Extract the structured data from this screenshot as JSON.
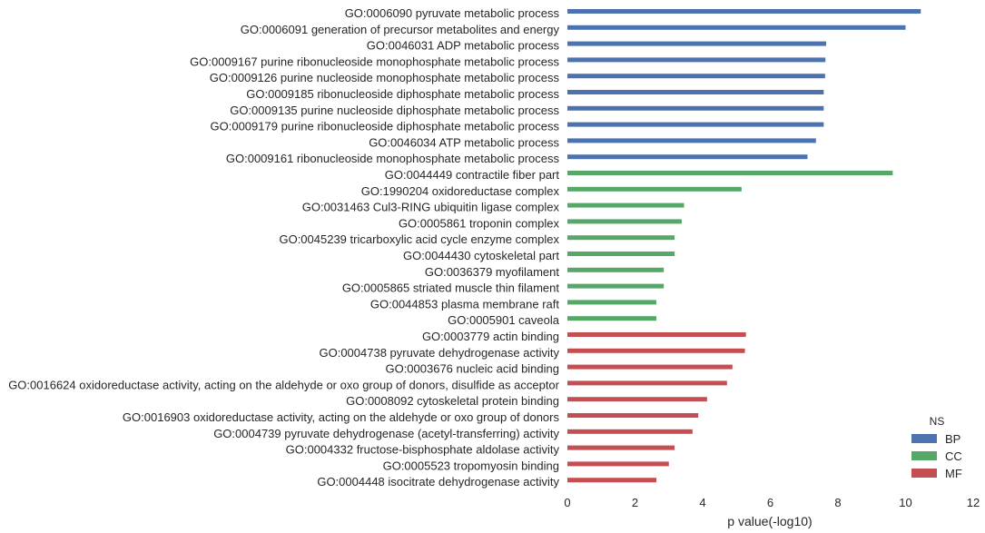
{
  "chart_data": {
    "type": "bar",
    "orientation": "horizontal",
    "xlabel": "p value(-log10)",
    "ylabel": "",
    "xlim": [
      0,
      12
    ],
    "xticks": [
      0,
      2,
      4,
      6,
      8,
      10,
      12
    ],
    "grid": false,
    "legend": {
      "title": "NS",
      "placement": "bottom-right",
      "entries": [
        "BP",
        "CC",
        "MF"
      ]
    },
    "colors": {
      "BP": "#4c72b0",
      "CC": "#55a868",
      "MF": "#c44e52"
    },
    "categories": [
      "GO:0006090 pyruvate metabolic process",
      "GO:0006091 generation of precursor metabolites and energy",
      "GO:0046031 ADP metabolic process",
      "GO:0009167 purine ribonucleoside monophosphate metabolic process",
      "GO:0009126 purine nucleoside monophosphate metabolic process",
      "GO:0009185 ribonucleoside diphosphate metabolic process",
      "GO:0009135 purine nucleoside diphosphate metabolic process",
      "GO:0009179 purine ribonucleoside diphosphate metabolic process",
      "GO:0046034 ATP metabolic process",
      "GO:0009161 ribonucleoside monophosphate metabolic process",
      "GO:0044449 contractile fiber part",
      "GO:1990204 oxidoreductase complex",
      "GO:0031463 Cul3-RING ubiquitin ligase complex",
      "GO:0005861 troponin complex",
      "GO:0045239 tricarboxylic acid cycle enzyme complex",
      "GO:0044430 cytoskeletal part",
      "GO:0036379 myofilament",
      "GO:0005865 striated muscle thin filament",
      "GO:0044853 plasma membrane raft",
      "GO:0005901 caveola",
      "GO:0003779 actin binding",
      "GO:0004738 pyruvate dehydrogenase activity",
      "GO:0003676 nucleic acid binding",
      "GO:0016624 oxidoreductase activity, acting on the aldehyde or oxo group of donors, disulfide as acceptor",
      "GO:0008092 cytoskeletal protein binding",
      "GO:0016903 oxidoreductase activity, acting on the aldehyde or oxo group of donors",
      "GO:0004739 pyruvate dehydrogenase (acetyl-transferring) activity",
      "GO:0004332 fructose-bisphosphate aldolase activity",
      "GO:0005523 tropomyosin binding",
      "GO:0004448 isocitrate dehydrogenase activity"
    ],
    "values": [
      10.45,
      10.0,
      7.65,
      7.63,
      7.62,
      7.58,
      7.58,
      7.58,
      7.35,
      7.1,
      9.62,
      5.15,
      3.45,
      3.38,
      3.17,
      3.17,
      2.85,
      2.85,
      2.63,
      2.63,
      5.28,
      5.25,
      4.88,
      4.72,
      4.13,
      3.87,
      3.7,
      3.17,
      3.0,
      2.63
    ],
    "groups": [
      "BP",
      "BP",
      "BP",
      "BP",
      "BP",
      "BP",
      "BP",
      "BP",
      "BP",
      "BP",
      "CC",
      "CC",
      "CC",
      "CC",
      "CC",
      "CC",
      "CC",
      "CC",
      "CC",
      "CC",
      "MF",
      "MF",
      "MF",
      "MF",
      "MF",
      "MF",
      "MF",
      "MF",
      "MF",
      "MF"
    ]
  }
}
